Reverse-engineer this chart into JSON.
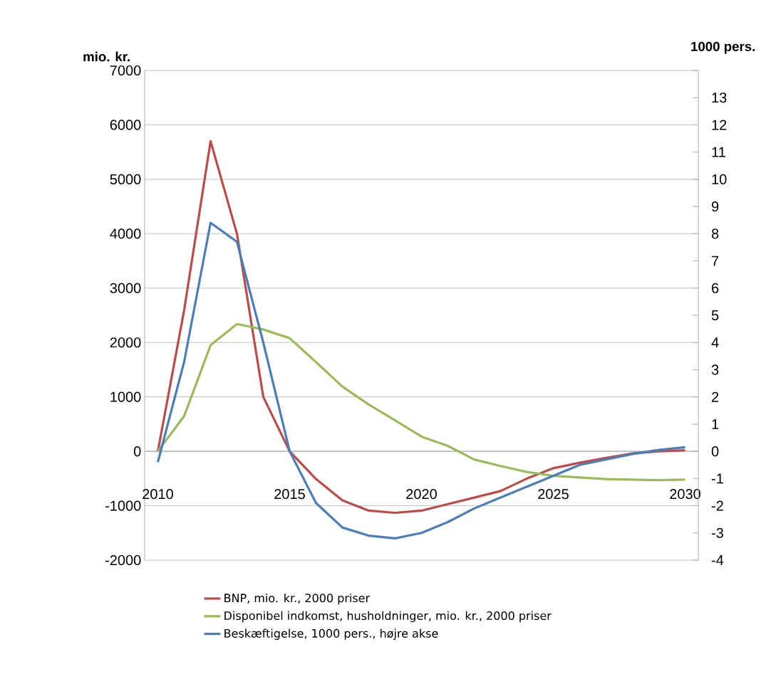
{
  "chart_data": {
    "type": "line",
    "ylabel": "mio. kr.",
    "y2label": "1000 pers.",
    "x": [
      2010,
      2011,
      2012,
      2013,
      2014,
      2015,
      2016,
      2017,
      2018,
      2019,
      2020,
      2021,
      2022,
      2023,
      2024,
      2025,
      2026,
      2027,
      2028,
      2029,
      2030
    ],
    "xlim": [
      2009.5,
      2030.5
    ],
    "xticks": [
      2010,
      2015,
      2020,
      2025,
      2030
    ],
    "ylim": [
      -2000,
      7000
    ],
    "yticks": [
      -2000,
      -1000,
      0,
      1000,
      2000,
      3000,
      4000,
      5000,
      6000,
      7000
    ],
    "y2lim": [
      -4,
      14
    ],
    "y2ticks": [
      -4,
      -3,
      -2,
      -1,
      0,
      1,
      2,
      3,
      4,
      5,
      6,
      7,
      8,
      9,
      10,
      11,
      12,
      13,
      {
        "value": 14,
        "label": null
      }
    ],
    "grid": "y",
    "legend": "bottom",
    "marker": "none",
    "line_style": "solid",
    "series": [
      {
        "name": "BNP, mio. kr., 2000 priser",
        "color": "#be4b48",
        "values": [
          0,
          2600,
          5700,
          4000,
          1000,
          0,
          -510,
          -900,
          -1090,
          -1130,
          -1090,
          -970,
          -850,
          -730,
          -500,
          -310,
          -210,
          -120,
          -40,
          0,
          20
        ]
      },
      {
        "name": "Disponibel indkomst, husholdninger, mio. kr., 2000 priser",
        "color": "#9bbb59",
        "values": [
          0,
          650,
          1950,
          2340,
          2240,
          2080,
          1640,
          1190,
          860,
          570,
          270,
          100,
          -150,
          -270,
          -380,
          -450,
          -480,
          -510,
          -520,
          -530,
          -520
        ]
      },
      {
        "name": "Beskæftigelse, 1000 pers., højre akse",
        "color": "#4a7ebb",
        "axis": "y2",
        "values": [
          -0.4,
          3.3,
          8.4,
          7.7,
          4.0,
          0,
          -1.9,
          -2.8,
          -3.1,
          -3.2,
          -3.0,
          -2.6,
          -2.1,
          -1.7,
          -1.3,
          -0.9,
          -0.5,
          -0.3,
          -0.1,
          0.05,
          0.15
        ]
      }
    ]
  }
}
